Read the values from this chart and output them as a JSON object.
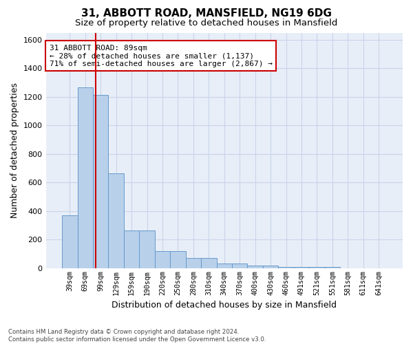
{
  "title1": "31, ABBOTT ROAD, MANSFIELD, NG19 6DG",
  "title2": "Size of property relative to detached houses in Mansfield",
  "xlabel": "Distribution of detached houses by size in Mansfield",
  "ylabel": "Number of detached properties",
  "footnote": "Contains HM Land Registry data © Crown copyright and database right 2024.\nContains public sector information licensed under the Open Government Licence v3.0.",
  "categories": [
    "39sqm",
    "69sqm",
    "99sqm",
    "129sqm",
    "159sqm",
    "190sqm",
    "220sqm",
    "250sqm",
    "280sqm",
    "310sqm",
    "340sqm",
    "370sqm",
    "400sqm",
    "430sqm",
    "460sqm",
    "491sqm",
    "521sqm",
    "551sqm",
    "581sqm",
    "611sqm",
    "641sqm"
  ],
  "values": [
    370,
    1265,
    1215,
    665,
    265,
    265,
    120,
    120,
    70,
    70,
    35,
    35,
    18,
    18,
    10,
    10,
    8,
    8,
    0,
    0,
    0
  ],
  "bar_color": "#b8d0ea",
  "bar_edge_color": "#6699cc",
  "grid_color": "#c8d4e8",
  "background_color": "#e8eef8",
  "annotation_box_color": "#cc0000",
  "property_line_color": "#cc0000",
  "annotation_text": "31 ABBOTT ROAD: 89sqm\n← 28% of detached houses are smaller (1,137)\n71% of semi-detached houses are larger (2,867) →",
  "ylim": [
    0,
    1650
  ],
  "yticks": [
    0,
    200,
    400,
    600,
    800,
    1000,
    1200,
    1400,
    1600
  ],
  "title1_fontsize": 11,
  "title2_fontsize": 9.5,
  "xlabel_fontsize": 9,
  "ylabel_fontsize": 9,
  "annotation_fontsize": 8
}
